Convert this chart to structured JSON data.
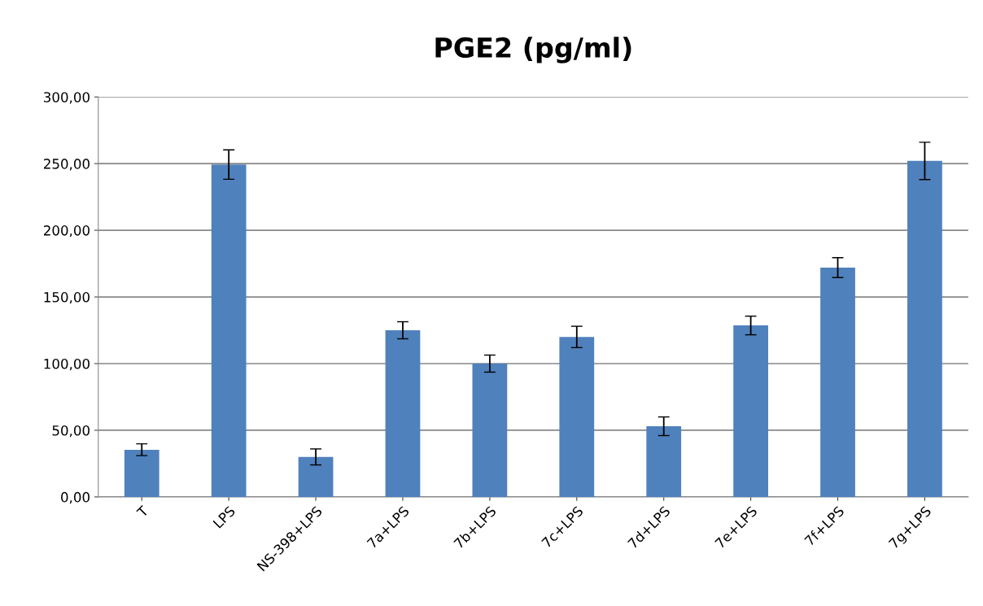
{
  "chart_data": {
    "type": "bar",
    "title": "PGE2 (pg/ml)",
    "categories": [
      "T",
      "LPS",
      "NS-398+LPS",
      "7a+LPS",
      "7b+LPS",
      "7c+LPS",
      "7d+LPS",
      "7e+LPS",
      "7f+LPS",
      "7g+LPS"
    ],
    "values": [
      35.4,
      249.3,
      30,
      125,
      100,
      120,
      53,
      128.6,
      172,
      252
    ],
    "errors": [
      4.4,
      11,
      6,
      6.4,
      6.4,
      8,
      7,
      7,
      7.5,
      14
    ],
    "color": "#4f81bd",
    "ylim": [
      0,
      300
    ],
    "yticks": [
      {
        "value": 0,
        "label": "0,00"
      },
      {
        "value": 50,
        "label": "50,00"
      },
      {
        "value": 100,
        "label": "100,00"
      },
      {
        "value": 150,
        "label": "150,00"
      },
      {
        "value": 200,
        "label": "200,00"
      },
      {
        "value": 250,
        "label": "250,00"
      },
      {
        "value": 300,
        "label": "300,00"
      }
    ],
    "grid": "y",
    "legend": false
  }
}
